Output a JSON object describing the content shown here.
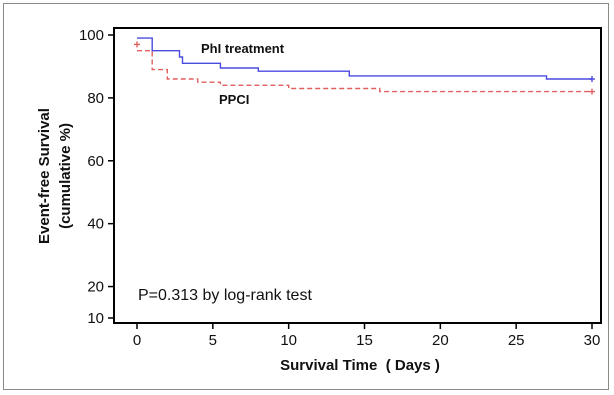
{
  "chart_data": {
    "type": "line",
    "subtype": "kaplan-meier step",
    "title": "",
    "xlabel": "Survival Time  ( Days )",
    "ylabel_line1": "Event-free Survival",
    "ylabel_line2": "(cumulative %)",
    "xlim": [
      -1.5,
      30.5
    ],
    "ylim": [
      9,
      101
    ],
    "x_ticks": [
      0,
      5,
      10,
      15,
      20,
      25,
      30
    ],
    "y_ticks": [
      10,
      20,
      40,
      60,
      80,
      100
    ],
    "grid": false,
    "annotation": "P=0.313 by log-rank test",
    "colors": {
      "phi": "#4a4ae0",
      "ppci": "#e06060",
      "axis": "#000000"
    },
    "series": [
      {
        "name": "PhI treatment",
        "line_style": "solid",
        "points": [
          [
            0,
            99
          ],
          [
            1,
            99
          ],
          [
            1,
            95
          ],
          [
            2.8,
            95
          ],
          [
            2.8,
            93
          ],
          [
            3,
            93
          ],
          [
            3,
            91
          ],
          [
            5.5,
            91
          ],
          [
            5.5,
            89.5
          ],
          [
            8,
            89.5
          ],
          [
            8,
            88.5
          ],
          [
            14,
            88.5
          ],
          [
            14,
            87
          ],
          [
            27,
            87
          ],
          [
            27,
            86
          ],
          [
            30,
            86
          ]
        ],
        "censor_marks": [
          [
            30,
            86
          ]
        ]
      },
      {
        "name": "PPCI",
        "line_style": "dashed",
        "points": [
          [
            0,
            95
          ],
          [
            1,
            95
          ],
          [
            1,
            89
          ],
          [
            2,
            89
          ],
          [
            2,
            86
          ],
          [
            4,
            86
          ],
          [
            4,
            85
          ],
          [
            5.5,
            85
          ],
          [
            5.5,
            84
          ],
          [
            10,
            84
          ],
          [
            10,
            83
          ],
          [
            16,
            83
          ],
          [
            16,
            82
          ],
          [
            30,
            82
          ]
        ],
        "censor_marks": [
          [
            0,
            97
          ],
          [
            30,
            82
          ]
        ]
      }
    ]
  }
}
